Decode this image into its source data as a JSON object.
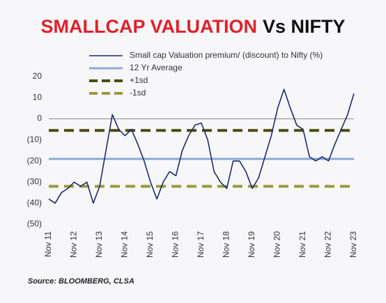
{
  "chart_data": {
    "type": "line",
    "title": [
      "SMALLCAP VALUATION",
      "Vs NIFTY"
    ],
    "title_colors": [
      "#e0202a",
      "#111111"
    ],
    "source": "Source: BLOOMBERG, CLSA",
    "categories": [
      "Nov 11",
      null,
      null,
      null,
      "Nov 12",
      null,
      null,
      null,
      "Nov 13",
      null,
      null,
      null,
      "Nov 14",
      null,
      null,
      null,
      "Nov 15",
      null,
      null,
      null,
      "Nov 16",
      null,
      null,
      null,
      "Nov 17",
      null,
      null,
      null,
      "Nov 18",
      null,
      null,
      null,
      "Nov 19",
      null,
      null,
      null,
      "Nov 20",
      null,
      null,
      null,
      "Nov 21",
      null,
      null,
      null,
      "Nov 22",
      null,
      null,
      null,
      "Nov 23"
    ],
    "series": [
      {
        "name": "Small cap Valuation premium/ (discount) to Nifty (%)",
        "color": "#1f2a6e",
        "values": [
          -38,
          -40,
          -35,
          -33,
          -30,
          -32,
          -30,
          -40,
          -32,
          -15,
          2,
          -5,
          -8,
          -5,
          -12,
          -20,
          -30,
          -38,
          -30,
          -25,
          -27,
          -15,
          -8,
          -3,
          -2,
          -10,
          -25,
          -30,
          -33,
          -20,
          -20,
          -25,
          -33,
          -28,
          -18,
          -8,
          5,
          14,
          5,
          -3,
          -5,
          -18,
          -20,
          -18,
          -20,
          -12,
          -5,
          2,
          12
        ]
      }
    ],
    "reference_lines": [
      {
        "name": "12 Yr Average",
        "value": -19,
        "color": "#8fa8d8",
        "dashed": false
      },
      {
        "name": "+1sd",
        "value": -5.5,
        "color": "#4a4a10",
        "dashed": true
      },
      {
        "name": "-1sd",
        "value": -32,
        "color": "#9a9a40",
        "dashed": true
      }
    ],
    "ylim": [
      -50,
      20
    ],
    "yticks": [
      20,
      10,
      0,
      {
        "value": -10,
        "label": "(10)"
      },
      {
        "value": -20,
        "label": "(20)"
      },
      {
        "value": -30,
        "label": "(30)"
      },
      {
        "value": -40,
        "label": "(40)"
      },
      {
        "value": -50,
        "label": "(50)"
      }
    ],
    "zero_line": true
  }
}
